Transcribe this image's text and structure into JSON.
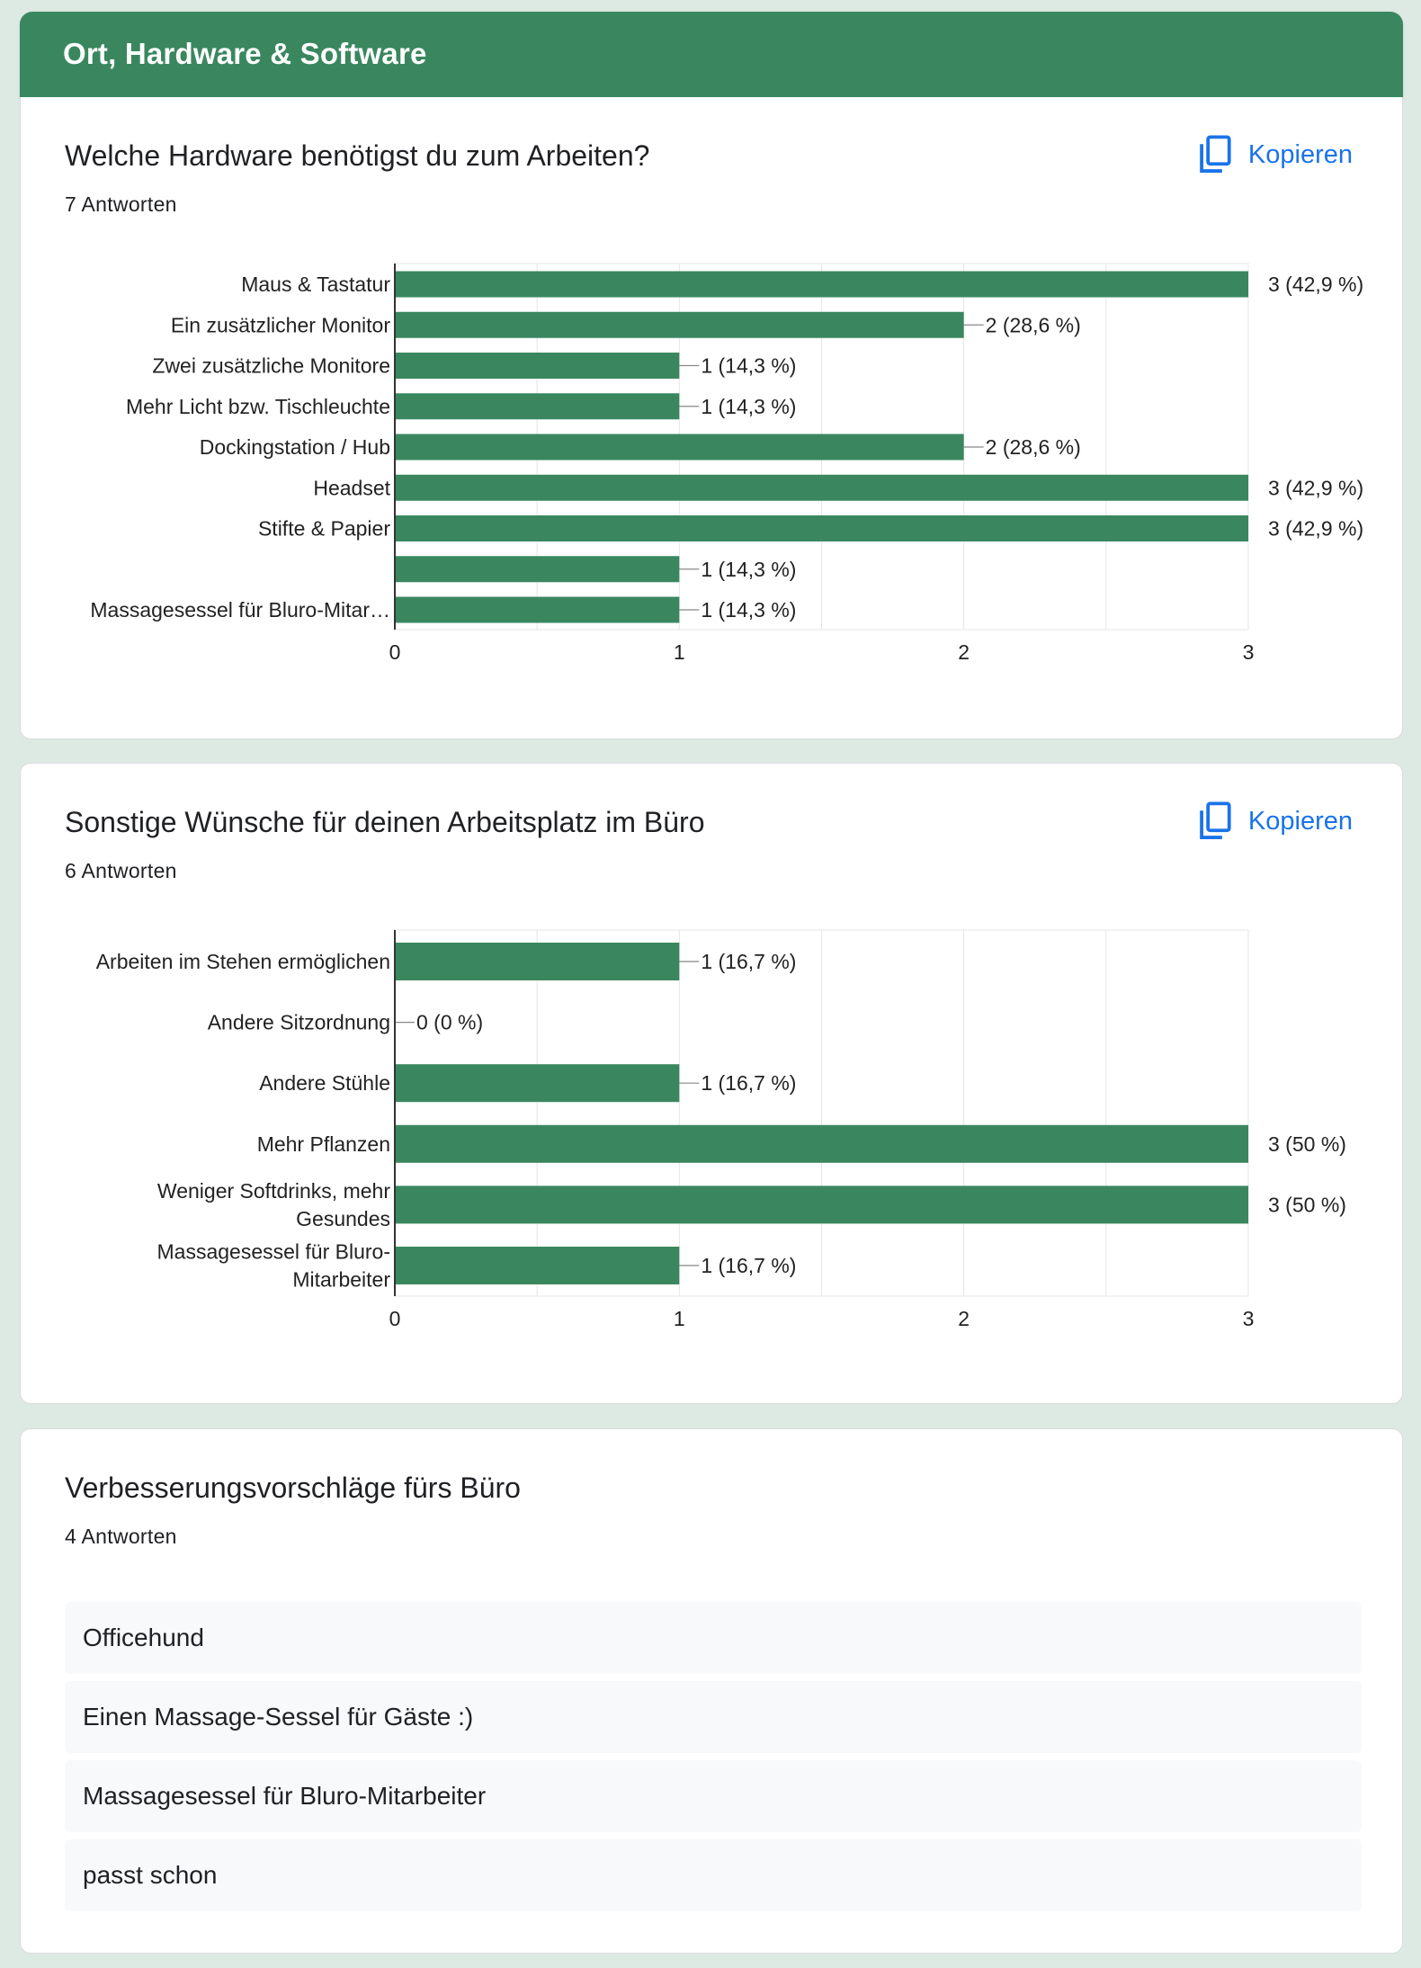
{
  "section": {
    "title": "Ort, Hardware & Software"
  },
  "copy_label": "Kopieren",
  "questions": [
    {
      "title": "Welche Hardware benötigst du zum Arbeiten?",
      "count": "7 Antworten"
    },
    {
      "title": "Sonstige Wünsche für deinen Arbeitsplatz im Büro",
      "count": "6 Antworten"
    },
    {
      "title": "Verbesserungsvorschläge fürs Büro",
      "count": "4 Antworten"
    }
  ],
  "responses": [
    "Officehund",
    "Einen Massage-Sessel für Gäste :)",
    "Massagesessel für Bluro-Mitarbeiter",
    "passt schon"
  ],
  "colors": {
    "header": "#3a875f",
    "bar": "#3a875f",
    "link": "#1a73e8",
    "background": "#dde9e3"
  },
  "chart_data": [
    {
      "type": "bar",
      "orientation": "horizontal",
      "categories": [
        [
          "Maus & Tastatur"
        ],
        [
          "Ein zusätzlicher Monitor"
        ],
        [
          "Zwei zusätzliche Monitore"
        ],
        [
          "Mehr Licht bzw. Tischleuchte"
        ],
        [
          "Dockingstation / Hub"
        ],
        [
          "Headset"
        ],
        [
          "Stifte & Papier"
        ],
        [
          ""
        ],
        [
          "Massagesessel für Bluro-Mitar…"
        ]
      ],
      "values": [
        3,
        2,
        1,
        1,
        2,
        3,
        3,
        1,
        1
      ],
      "labels": [
        "3 (42,9 %)",
        "2 (28,6 %)",
        "1 (14,3 %)",
        "1 (14,3 %)",
        "2 (28,6 %)",
        "3 (42,9 %)",
        "3 (42,9 %)",
        "1 (14,3 %)",
        "1 (14,3 %)"
      ],
      "xticks": [
        "0",
        "1",
        "2",
        "3"
      ],
      "xlim": [
        0,
        3
      ],
      "grid": true
    },
    {
      "type": "bar",
      "orientation": "horizontal",
      "categories": [
        [
          "Arbeiten im Stehen ermöglichen"
        ],
        [
          "Andere Sitzordnung"
        ],
        [
          "Andere Stühle"
        ],
        [
          "Mehr Pflanzen"
        ],
        [
          "Weniger Softdrinks, mehr",
          "Gesundes"
        ],
        [
          "Massagesessel für Bluro-",
          "Mitarbeiter"
        ]
      ],
      "values": [
        1,
        0,
        1,
        3,
        3,
        1
      ],
      "labels": [
        "1 (16,7 %)",
        "0 (0 %)",
        "1 (16,7 %)",
        "3 (50 %)",
        "3 (50 %)",
        "1 (16,7 %)"
      ],
      "xticks": [
        "0",
        "1",
        "2",
        "3"
      ],
      "xlim": [
        0,
        3
      ],
      "grid": true
    }
  ]
}
